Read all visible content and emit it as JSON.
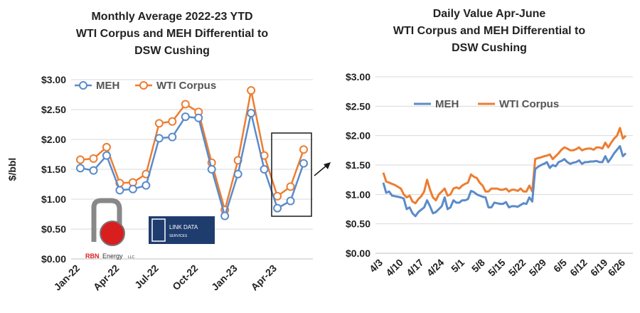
{
  "colors": {
    "meh": "#5B8BC9",
    "wti": "#ED7D31",
    "grid": "#D9D9D9",
    "axis": "#BFBFBF",
    "text": "#222222"
  },
  "logos": {
    "rbn": {
      "name": "RBN",
      "text": "Energy",
      "suffix": "LLC"
    },
    "link": {
      "line1": "LINK DATA",
      "line2": "SERVICES"
    }
  },
  "chart_data": [
    {
      "type": "line",
      "title": [
        "Monthly Average  2022-23 YTD",
        "WTI Corpus and MEH Differential to",
        "DSW Cushing"
      ],
      "xlabel": "",
      "ylabel": "$/bbl",
      "ylim": [
        0,
        3
      ],
      "yticks": [
        "$0.00",
        "$0.50",
        "$1.00",
        "$1.50",
        "$2.00",
        "$2.50",
        "$3.00"
      ],
      "x": [
        "Jan-22",
        "Feb-22",
        "Mar-22",
        "Apr-22",
        "May-22",
        "Jun-22",
        "Jul-22",
        "Aug-22",
        "Sep-22",
        "Oct-22",
        "Nov-22",
        "Dec-22",
        "Jan-23",
        "Feb-23",
        "Mar-23",
        "Apr-23",
        "May-23",
        "Jun-23"
      ],
      "xtick_labels": [
        "Jan-22",
        "Apr-22",
        "Jul-22",
        "Oct-22",
        "Jan-23",
        "Apr-23"
      ],
      "series": [
        {
          "name": "MEH",
          "values": [
            1.52,
            1.48,
            1.73,
            1.15,
            1.17,
            1.23,
            2.02,
            2.04,
            2.38,
            2.36,
            1.5,
            0.72,
            1.42,
            2.44,
            1.5,
            0.85,
            0.97,
            1.6
          ]
        },
        {
          "name": "WTI Corpus",
          "values": [
            1.66,
            1.68,
            1.87,
            1.27,
            1.28,
            1.42,
            2.27,
            2.3,
            2.59,
            2.46,
            1.61,
            0.82,
            1.65,
            2.82,
            1.73,
            1.05,
            1.21,
            1.83
          ]
        }
      ],
      "legend": "top-left",
      "grid": true
    },
    {
      "type": "line",
      "title": [
        "Daily Value Apr-June",
        "WTI Corpus and MEH Differential to",
        "DSW Cushing"
      ],
      "xlabel": "",
      "ylabel": "",
      "ylim": [
        0,
        3
      ],
      "yticks": [
        "$0.00",
        "$0.50",
        "$1.00",
        "$1.50",
        "$2.00",
        "$2.50",
        "$3.00"
      ],
      "xtick_labels": [
        "4/3",
        "4/10",
        "4/17",
        "4/24",
        "5/1",
        "5/8",
        "5/15",
        "5/22",
        "5/29",
        "6/5",
        "6/12",
        "6/19",
        "6/26"
      ],
      "series": [
        {
          "name": "MEH",
          "values": [
            1.2,
            1.03,
            1.05,
            0.98,
            0.97,
            0.96,
            0.95,
            0.93,
            0.75,
            0.78,
            0.68,
            0.63,
            0.7,
            0.74,
            0.78,
            0.9,
            0.8,
            0.68,
            0.7,
            0.75,
            0.8,
            0.95,
            0.75,
            0.78,
            0.9,
            0.86,
            0.86,
            0.9,
            0.9,
            0.92,
            1.06,
            1.04,
            1.0,
            0.98,
            0.96,
            0.95,
            0.78,
            0.78,
            0.86,
            0.85,
            0.84,
            0.84,
            0.87,
            0.78,
            0.8,
            0.8,
            0.79,
            0.82,
            0.85,
            0.84,
            0.95,
            0.88,
            1.43,
            1.47,
            1.5,
            1.52,
            1.55,
            1.45,
            1.5,
            1.48,
            1.55,
            1.57,
            1.6,
            1.55,
            1.52,
            1.54,
            1.55,
            1.58,
            1.52,
            1.55,
            1.55,
            1.56,
            1.56,
            1.57,
            1.55,
            1.55,
            1.65,
            1.55,
            1.62,
            1.7,
            1.76,
            1.82,
            1.65,
            1.7
          ]
        },
        {
          "name": "WTI Corpus",
          "values": [
            1.37,
            1.22,
            1.2,
            1.18,
            1.16,
            1.13,
            1.1,
            1.0,
            0.95,
            0.98,
            0.88,
            0.85,
            0.92,
            0.97,
            1.05,
            1.25,
            1.08,
            0.95,
            0.9,
            1.0,
            1.05,
            1.1,
            0.98,
            1.0,
            1.1,
            1.12,
            1.1,
            1.15,
            1.18,
            1.2,
            1.34,
            1.3,
            1.28,
            1.2,
            1.15,
            1.05,
            1.05,
            1.1,
            1.1,
            1.1,
            1.08,
            1.08,
            1.1,
            1.05,
            1.08,
            1.08,
            1.06,
            1.1,
            1.05,
            1.05,
            1.15,
            1.05,
            1.6,
            1.62,
            1.63,
            1.65,
            1.66,
            1.68,
            1.6,
            1.65,
            1.7,
            1.76,
            1.8,
            1.78,
            1.75,
            1.75,
            1.77,
            1.8,
            1.75,
            1.77,
            1.78,
            1.78,
            1.76,
            1.8,
            1.8,
            1.78,
            1.88,
            1.8,
            1.88,
            1.95,
            2.0,
            2.13,
            1.95,
            2.0
          ]
        }
      ],
      "legend": "top-center",
      "grid": true
    }
  ]
}
